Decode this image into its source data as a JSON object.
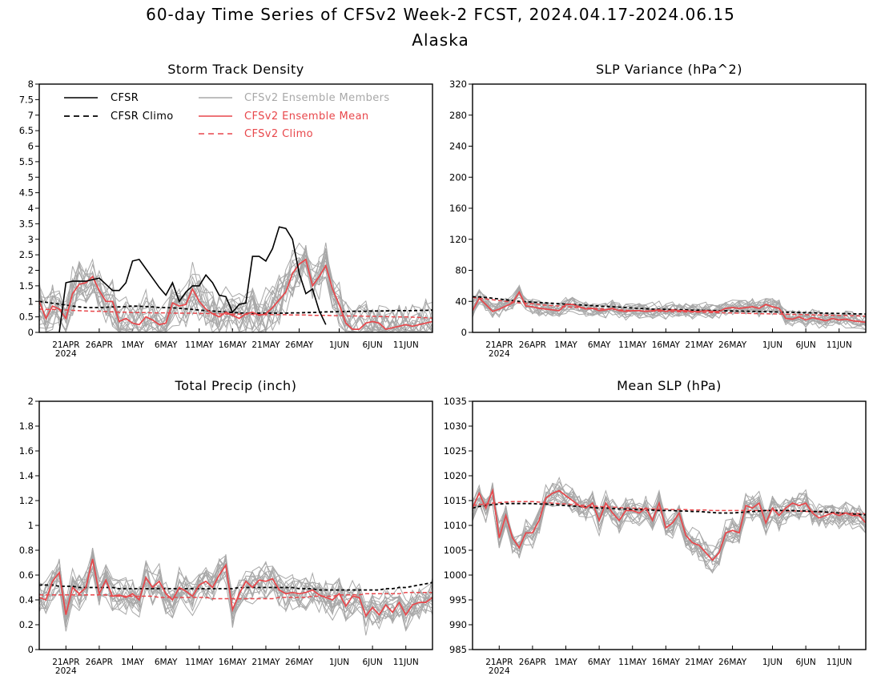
{
  "page": {
    "title_line1": "60-day Time Series of CFSv2 Week-2 FCST, 2024.04.17-2024.06.15",
    "title_line2": "Alaska"
  },
  "colors": {
    "cfsr": "#000000",
    "ensemble_member": "#a8a8a8",
    "ensemble_mean": "#e8474b",
    "cfsv2_climo": "#e8474b"
  },
  "legend": {
    "cfsr": "CFSR",
    "cfsr_climo": "CFSR Climo",
    "members": "CFSv2 Ensemble Members",
    "mean": "CFSv2 Ensemble Mean",
    "cfsv2_climo": "CFSv2 Climo"
  },
  "x_ticks": {
    "labels": [
      "21APR",
      "26APR",
      "1MAY",
      "6MAY",
      "11MAY",
      "16MAY",
      "21MAY",
      "26MAY",
      "1JUN",
      "6JUN",
      "11JUN"
    ],
    "days": [
      4,
      9,
      14,
      19,
      24,
      29,
      34,
      39,
      45,
      50,
      55
    ],
    "year_label": "2024"
  },
  "chart_data": [
    {
      "type": "line",
      "title": "Storm Track Density",
      "ylim": [
        0,
        8
      ],
      "yticks": [
        "0",
        "0.5",
        "1",
        "1.5",
        "2",
        "2.5",
        "3",
        "3.5",
        "4",
        "4.5",
        "5",
        "5.5",
        "6",
        "6.5",
        "7",
        "7.5",
        "8"
      ],
      "ytick_values": [
        0,
        0.5,
        1,
        1.5,
        2,
        2.5,
        3,
        3.5,
        4,
        4.5,
        5,
        5.5,
        6,
        6.5,
        7,
        7.5,
        8
      ],
      "series": [
        {
          "key": "cfsr",
          "values": [
            null,
            null,
            null,
            0.0,
            1.6,
            1.65,
            1.65,
            1.65,
            1.7,
            1.75,
            1.55,
            1.35,
            1.35,
            1.6,
            2.3,
            2.35,
            2.05,
            1.75,
            1.45,
            1.2,
            1.6,
            1.0,
            1.3,
            1.5,
            1.5,
            1.85,
            1.6,
            1.2,
            1.15,
            0.65,
            0.9,
            0.95,
            2.45,
            2.45,
            2.3,
            2.7,
            3.4,
            3.35,
            3.0,
            1.9,
            1.25,
            1.4,
            0.7,
            0.25,
            null,
            null,
            null,
            null,
            null,
            null,
            null,
            null,
            null,
            null,
            null,
            null,
            null,
            null,
            null,
            null
          ]
        },
        {
          "key": "cfsr_climo",
          "values": [
            1.0,
            0.97,
            0.94,
            0.91,
            0.88,
            0.85,
            0.82,
            0.8,
            0.8,
            0.8,
            0.81,
            0.82,
            0.82,
            0.83,
            0.85,
            0.84,
            0.83,
            0.82,
            0.8,
            0.8,
            0.79,
            0.78,
            0.76,
            0.74,
            0.72,
            0.7,
            0.69,
            0.67,
            0.66,
            0.64,
            0.63,
            0.62,
            0.62,
            0.62,
            0.62,
            0.62,
            0.62,
            0.62,
            0.63,
            0.63,
            0.64,
            0.64,
            0.65,
            0.66,
            0.66,
            0.67,
            0.67,
            0.68,
            0.68,
            0.68,
            0.69,
            0.69,
            0.69,
            0.7,
            0.7,
            0.7,
            0.7,
            0.71,
            0.71,
            0.72
          ]
        },
        {
          "key": "mean",
          "values": [
            1.0,
            0.45,
            0.85,
            0.75,
            0.45,
            1.25,
            1.55,
            1.6,
            1.8,
            1.35,
            1.0,
            1.0,
            0.35,
            0.45,
            0.3,
            0.25,
            0.5,
            0.4,
            0.25,
            0.3,
            0.95,
            0.85,
            0.9,
            1.4,
            1.0,
            0.75,
            0.6,
            0.5,
            0.65,
            0.55,
            0.45,
            0.6,
            0.65,
            0.55,
            0.6,
            0.8,
            1.05,
            1.3,
            1.9,
            2.2,
            2.35,
            1.5,
            1.8,
            2.15,
            1.4,
            0.9,
            0.3,
            0.1,
            0.1,
            0.3,
            0.35,
            0.3,
            0.1,
            0.15,
            0.2,
            0.25,
            0.2,
            0.25,
            0.3,
            0.35
          ]
        },
        {
          "key": "cfsv2_climo",
          "values": [
            0.75,
            0.74,
            0.74,
            0.73,
            0.72,
            0.71,
            0.7,
            0.69,
            0.68,
            0.68,
            0.67,
            0.66,
            0.65,
            0.65,
            0.64,
            0.64,
            0.64,
            0.63,
            0.63,
            0.63,
            0.62,
            0.62,
            0.62,
            0.62,
            0.61,
            0.61,
            0.6,
            0.6,
            0.59,
            0.59,
            0.59,
            0.58,
            0.58,
            0.58,
            0.57,
            0.57,
            0.57,
            0.57,
            0.56,
            0.56,
            0.56,
            0.55,
            0.55,
            0.55,
            0.54,
            0.54,
            0.53,
            0.53,
            0.53,
            0.52,
            0.52,
            0.51,
            0.51,
            0.5,
            0.5,
            0.5,
            0.49,
            0.48,
            0.47,
            0.46
          ]
        }
      ],
      "members": {
        "count": 16,
        "baseline": "mean",
        "spread": 0.9,
        "seed": 11
      }
    },
    {
      "type": "line",
      "title": "SLP Variance (hPa^2)",
      "ylim": [
        0,
        320
      ],
      "yticks": [
        "0",
        "40",
        "80",
        "120",
        "160",
        "200",
        "240",
        "280",
        "320"
      ],
      "ytick_values": [
        0,
        40,
        80,
        120,
        160,
        200,
        240,
        280,
        320
      ],
      "series": [
        {
          "key": "cfsr_climo",
          "values": [
            46,
            45.5,
            45,
            44,
            43,
            42,
            41,
            40,
            39.5,
            39,
            38.5,
            38,
            37.5,
            37,
            36.5,
            36,
            35.5,
            35,
            34.5,
            34,
            33.5,
            33,
            32.5,
            32,
            31.5,
            31,
            30.5,
            30,
            29.8,
            29.6,
            29.4,
            29.2,
            29,
            28.8,
            28.6,
            28.4,
            28.2,
            28,
            27.8,
            27.6,
            27.4,
            27.2,
            27,
            26.8,
            26.6,
            26.4,
            26.2,
            26,
            25.8,
            25.6,
            25.4,
            25.2,
            25,
            24.8,
            24.6,
            24.4,
            24.2,
            24,
            23.8,
            23.6
          ]
        },
        {
          "key": "cfsv2_climo",
          "values": [
            45,
            44,
            43,
            42,
            41,
            40,
            39,
            38,
            37.5,
            37,
            36,
            35,
            34.5,
            34,
            33,
            32.5,
            32,
            31.5,
            31,
            30.5,
            30,
            29.5,
            29,
            28.5,
            28,
            27.8,
            27.6,
            27.4,
            27.2,
            27,
            26.8,
            26.6,
            26.4,
            26.2,
            26,
            25.8,
            25.6,
            25.4,
            25.2,
            25,
            24.8,
            24.6,
            24.4,
            24.2,
            24,
            23.8,
            23.6,
            23.4,
            23.2,
            23,
            22.8,
            22.6,
            22.4,
            22.2,
            22,
            21.8,
            21.6,
            21.4,
            21.2,
            21
          ]
        },
        {
          "key": "mean",
          "values": [
            28,
            44,
            36,
            27,
            30,
            34,
            38,
            52,
            34,
            33,
            31,
            30,
            29,
            28,
            36,
            36,
            33,
            30,
            31,
            28,
            29,
            31,
            28,
            27,
            28,
            28,
            27,
            28,
            29,
            27,
            29,
            28,
            28,
            27,
            27,
            28,
            27,
            27,
            31,
            32,
            31,
            32,
            33,
            31,
            36,
            33,
            31,
            18,
            17,
            20,
            16,
            19,
            17,
            15,
            18,
            16,
            17,
            15,
            14,
            13
          ]
        }
      ],
      "members": {
        "count": 16,
        "baseline": "mean",
        "spread": 12,
        "seed": 23
      }
    },
    {
      "type": "line",
      "title": "Total Precip (inch)",
      "ylim": [
        0,
        2
      ],
      "yticks": [
        "0",
        "0.2",
        "0.4",
        "0.6",
        "0.8",
        "1",
        "1.2",
        "1.4",
        "1.6",
        "1.8",
        "2"
      ],
      "ytick_values": [
        0,
        0.2,
        0.4,
        0.6,
        0.8,
        1,
        1.2,
        1.4,
        1.6,
        1.8,
        2
      ],
      "series": [
        {
          "key": "cfsr_climo",
          "values": [
            0.52,
            0.52,
            0.52,
            0.51,
            0.51,
            0.51,
            0.5,
            0.5,
            0.5,
            0.5,
            0.5,
            0.5,
            0.49,
            0.49,
            0.49,
            0.49,
            0.49,
            0.49,
            0.49,
            0.49,
            0.49,
            0.49,
            0.49,
            0.49,
            0.49,
            0.49,
            0.49,
            0.49,
            0.49,
            0.49,
            0.5,
            0.5,
            0.5,
            0.5,
            0.5,
            0.5,
            0.5,
            0.5,
            0.5,
            0.49,
            0.49,
            0.49,
            0.48,
            0.48,
            0.48,
            0.48,
            0.48,
            0.48,
            0.48,
            0.48,
            0.48,
            0.48,
            0.49,
            0.49,
            0.5,
            0.5,
            0.51,
            0.52,
            0.53,
            0.54
          ]
        },
        {
          "key": "cfsv2_climo",
          "values": [
            0.44,
            0.44,
            0.44,
            0.44,
            0.44,
            0.44,
            0.44,
            0.44,
            0.44,
            0.44,
            0.44,
            0.43,
            0.43,
            0.43,
            0.43,
            0.43,
            0.43,
            0.43,
            0.42,
            0.42,
            0.42,
            0.42,
            0.42,
            0.42,
            0.42,
            0.42,
            0.41,
            0.41,
            0.41,
            0.41,
            0.41,
            0.41,
            0.41,
            0.41,
            0.41,
            0.41,
            0.42,
            0.42,
            0.42,
            0.42,
            0.42,
            0.43,
            0.43,
            0.43,
            0.43,
            0.44,
            0.44,
            0.44,
            0.44,
            0.45,
            0.45,
            0.45,
            0.45,
            0.45,
            0.45,
            0.46,
            0.46,
            0.46,
            0.46,
            0.46
          ]
        },
        {
          "key": "mean",
          "values": [
            0.42,
            0.4,
            0.55,
            0.62,
            0.28,
            0.5,
            0.45,
            0.5,
            0.73,
            0.45,
            0.56,
            0.43,
            0.44,
            0.42,
            0.45,
            0.4,
            0.58,
            0.5,
            0.55,
            0.45,
            0.4,
            0.5,
            0.47,
            0.43,
            0.52,
            0.55,
            0.5,
            0.6,
            0.68,
            0.32,
            0.45,
            0.55,
            0.5,
            0.56,
            0.55,
            0.57,
            0.48,
            0.45,
            0.46,
            0.45,
            0.46,
            0.48,
            0.44,
            0.42,
            0.4,
            0.45,
            0.35,
            0.43,
            0.42,
            0.27,
            0.34,
            0.28,
            0.36,
            0.3,
            0.38,
            0.28,
            0.36,
            0.38,
            0.38,
            0.42
          ]
        }
      ],
      "members": {
        "count": 16,
        "baseline": "mean",
        "spread": 0.17,
        "seed": 37
      }
    },
    {
      "type": "line",
      "title": "Mean SLP (hPa)",
      "ylim": [
        985,
        1035
      ],
      "yticks": [
        "985",
        "990",
        "995",
        "1000",
        "1005",
        "1010",
        "1015",
        "1020",
        "1025",
        "1030",
        "1035"
      ],
      "ytick_values": [
        985,
        990,
        995,
        1000,
        1005,
        1010,
        1015,
        1020,
        1025,
        1030,
        1035
      ],
      "series": [
        {
          "key": "cfsr_climo",
          "values": [
            1013.5,
            1013.8,
            1014.0,
            1014.2,
            1014.3,
            1014.4,
            1014.4,
            1014.4,
            1014.4,
            1014.4,
            1014.3,
            1014.3,
            1014.2,
            1014.1,
            1014.0,
            1013.9,
            1013.8,
            1013.7,
            1013.6,
            1013.5,
            1013.5,
            1013.4,
            1013.3,
            1013.3,
            1013.2,
            1013.2,
            1013.1,
            1013.1,
            1013.0,
            1013.0,
            1013.0,
            1012.9,
            1012.9,
            1012.8,
            1012.8,
            1012.7,
            1012.6,
            1012.5,
            1012.5,
            1012.5,
            1012.6,
            1012.7,
            1012.8,
            1012.9,
            1013.0,
            1013.0,
            1013.0,
            1013.0,
            1013.0,
            1012.9,
            1012.9,
            1012.8,
            1012.8,
            1012.7,
            1012.6,
            1012.5,
            1012.4,
            1012.3,
            1012.2,
            1012.1
          ]
        },
        {
          "key": "cfsv2_climo",
          "values": [
            1014.0,
            1014.2,
            1014.3,
            1014.5,
            1014.6,
            1014.7,
            1014.8,
            1014.8,
            1014.8,
            1014.8,
            1014.7,
            1014.6,
            1014.5,
            1014.4,
            1014.3,
            1014.2,
            1014.1,
            1014.0,
            1013.9,
            1013.8,
            1013.7,
            1013.7,
            1013.6,
            1013.5,
            1013.5,
            1013.4,
            1013.4,
            1013.3,
            1013.3,
            1013.3,
            1013.2,
            1013.2,
            1013.2,
            1013.1,
            1013.1,
            1013.1,
            1013.0,
            1013.0,
            1013.0,
            1013.0,
            1013.0,
            1013.0,
            1013.0,
            1013.0,
            1013.0,
            1013.0,
            1013.0,
            1012.9,
            1012.9,
            1012.9,
            1012.8,
            1012.8,
            1012.7,
            1012.6,
            1012.6,
            1012.5,
            1012.5,
            1012.4,
            1012.4,
            1012.3
          ]
        },
        {
          "key": "mean",
          "values": [
            1013.5,
            1016.5,
            1013.5,
            1017.0,
            1007.5,
            1012.0,
            1007.5,
            1005.5,
            1008.5,
            1008.5,
            1011.0,
            1015.5,
            1016.5,
            1017.0,
            1016.0,
            1015.0,
            1014.0,
            1013.5,
            1014.5,
            1011.0,
            1014.5,
            1012.5,
            1011.0,
            1013.0,
            1013.0,
            1012.5,
            1013.5,
            1011.0,
            1014.5,
            1009.5,
            1010.5,
            1012.5,
            1008.0,
            1006.5,
            1006.0,
            1004.5,
            1003.0,
            1004.5,
            1008.5,
            1009.0,
            1008.5,
            1014.0,
            1013.5,
            1014.5,
            1010.5,
            1013.5,
            1012.0,
            1013.5,
            1014.5,
            1014.0,
            1014.5,
            1012.5,
            1011.5,
            1012.0,
            1012.5,
            1012.0,
            1012.5,
            1012.0,
            1012.0,
            1010.5
          ]
        }
      ],
      "members": {
        "count": 16,
        "baseline": "mean",
        "spread": 3.2,
        "seed": 53
      }
    }
  ]
}
